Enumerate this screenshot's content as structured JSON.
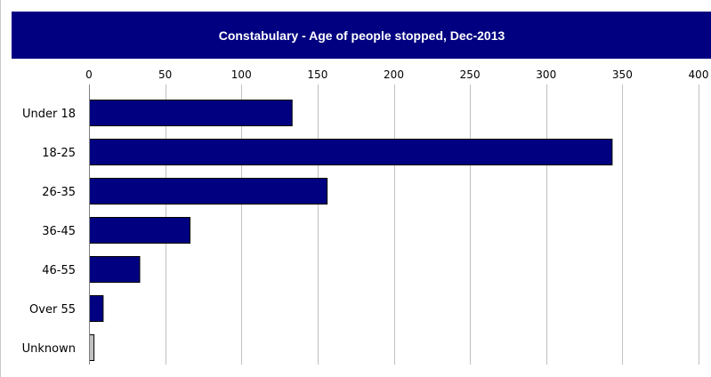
{
  "colors": {
    "title_bg": "#000080",
    "title_text": "#ffffff",
    "bar_fill": "#000080",
    "bar_stroke": "#000000",
    "unknown_fill": "#c0c0c0",
    "grid": "#c0c0c0",
    "axis": "#808080",
    "label": "#000000"
  },
  "chart_data": {
    "type": "bar",
    "orientation": "horizontal",
    "title": "Constabulary  - Age of people stopped, Dec-2013",
    "categories": [
      "Under 18",
      "18-25",
      "26-35",
      "36-45",
      "46-55",
      "Over 55",
      "Unknown"
    ],
    "values": [
      133,
      343,
      156,
      66,
      33,
      9,
      3
    ],
    "xlim": [
      0,
      400
    ],
    "x_ticks": [
      0,
      50,
      100,
      150,
      200,
      250,
      300,
      350,
      400
    ],
    "x_axis_position": "top",
    "grid": "vertical",
    "legend": "none",
    "xlabel": "",
    "ylabel": ""
  }
}
